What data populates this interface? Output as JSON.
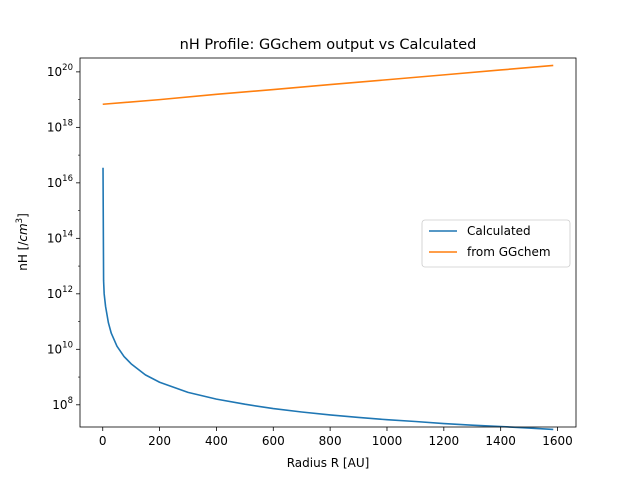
{
  "chart_data": {
    "type": "line",
    "title": "nH Profile: GGchem output vs Calculated",
    "xlabel": "Radius R [AU]",
    "ylabel_main": "nH [/",
    "ylabel_unit": "cm",
    "ylabel_exp": "3",
    "ylabel_close": "]",
    "y_scale": "log",
    "xlim": [
      -80,
      1665
    ],
    "ylim_exp": [
      7.2,
      20.5
    ],
    "x_ticks": [
      0,
      200,
      400,
      600,
      800,
      1000,
      1200,
      1400,
      1600
    ],
    "x_tick_labels": [
      "0",
      "200",
      "400",
      "600",
      "800",
      "1000",
      "1200",
      "1400",
      "1600"
    ],
    "y_tick_exps": [
      8,
      10,
      12,
      14,
      16,
      18,
      20
    ],
    "y_tick_base": "10",
    "y_tick_sups": [
      "8",
      "10",
      "12",
      "14",
      "16",
      "18",
      "20"
    ],
    "grid": false,
    "legend_placement": "center-right",
    "series": [
      {
        "name": "Calculated",
        "color": "#1f77b4",
        "x": [
          1,
          3,
          5,
          10,
          20,
          30,
          50,
          75,
          100,
          150,
          200,
          300,
          400,
          500,
          600,
          700,
          800,
          900,
          1000,
          1100,
          1200,
          1300,
          1400,
          1500,
          1585
        ],
        "y": [
          3.5e+16,
          3000000000000.0,
          1000000000000.0,
          350000000000.0,
          90000000000.0,
          38000000000.0,
          13000000000.0,
          5500000000.0,
          3000000000.0,
          1200000000.0,
          650000000.0,
          280000000.0,
          160000000.0,
          105000000.0,
          73000000.0,
          55000000.0,
          43000000.0,
          35000000.0,
          29000000.0,
          25000000.0,
          21000000.0,
          18500000.0,
          16500000.0,
          14500000.0,
          13000000.0
        ]
      },
      {
        "name": "from GGchem",
        "color": "#ff7f0e",
        "x": [
          0,
          200,
          400,
          600,
          800,
          1000,
          1200,
          1400,
          1585
        ],
        "y": [
          6.8e+18,
          1e+19,
          1.55e+19,
          2.3e+19,
          3.5e+19,
          5.2e+19,
          7.8e+19,
          1.17e+20,
          1.7e+20
        ]
      }
    ]
  }
}
